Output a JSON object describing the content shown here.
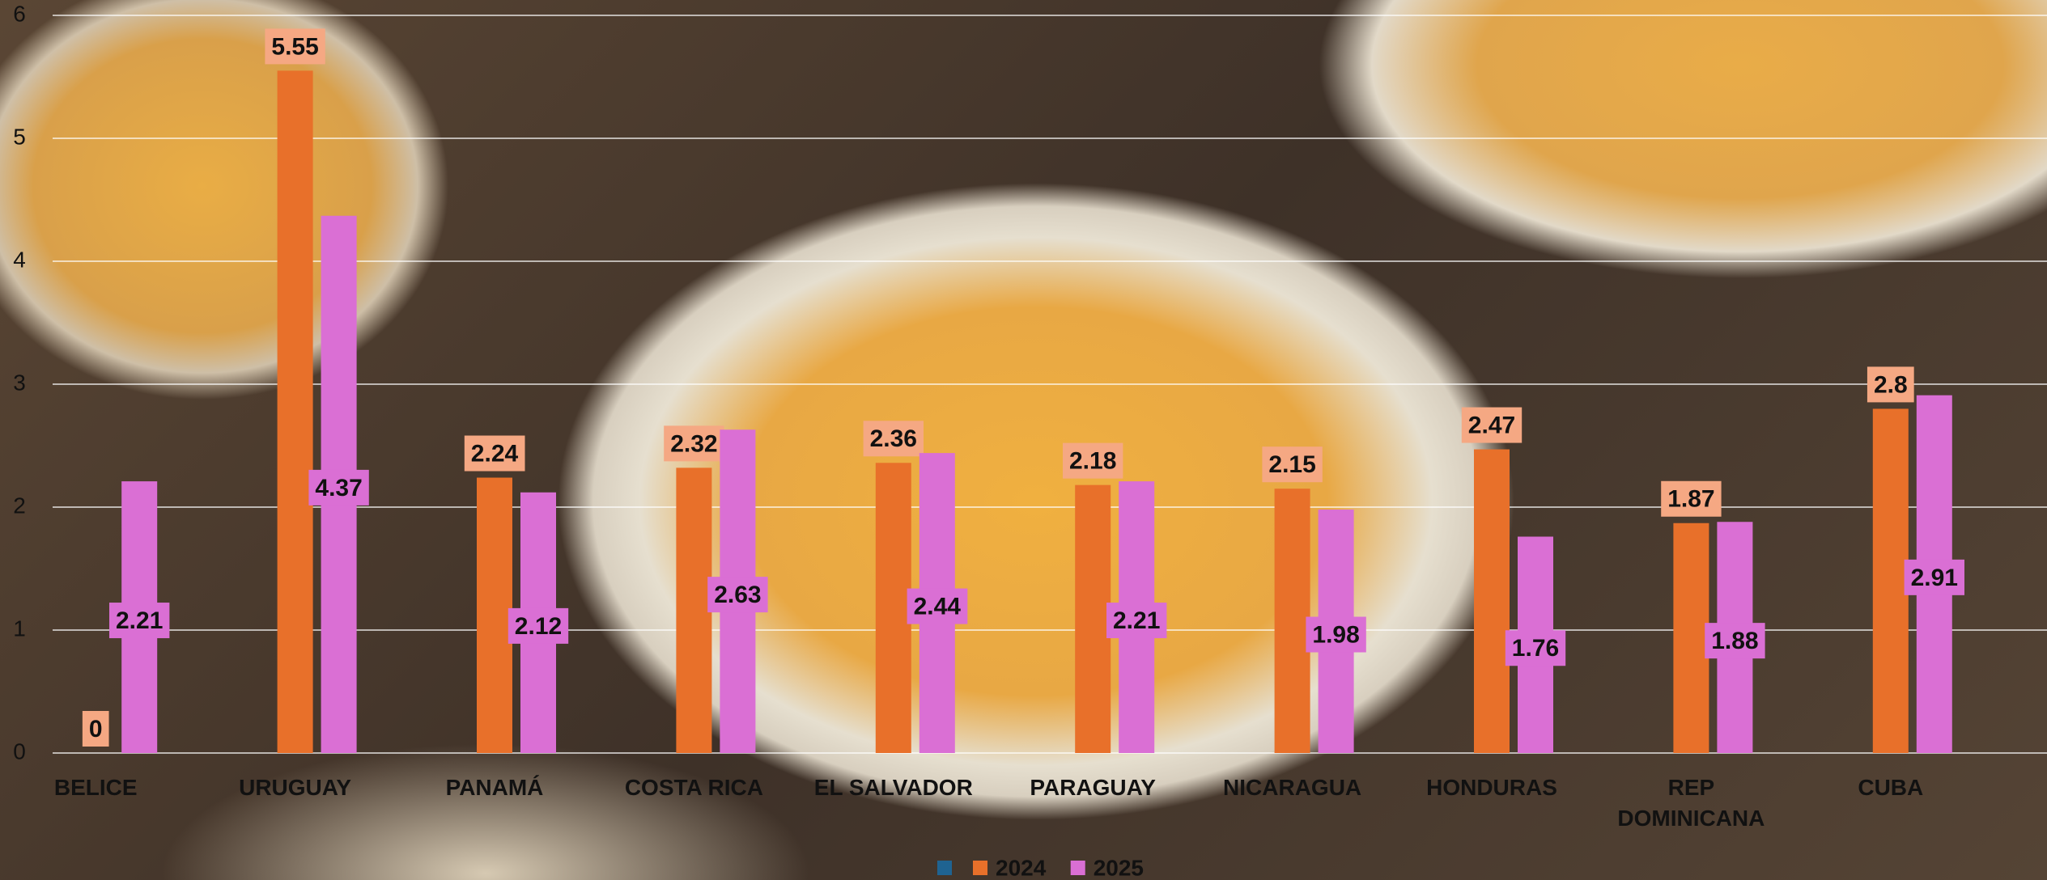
{
  "chart_data": {
    "type": "bar",
    "categories": [
      "BELICE",
      "URUGUAY",
      "PANAMÁ",
      "COSTA RICA",
      "EL SALVADOR",
      "PARAGUAY",
      "NICARAGUA",
      "HONDURAS",
      "REP DOMINICANA",
      "CUBA"
    ],
    "series": [
      {
        "name": "2024",
        "color": "#e8702a",
        "label_color": "#f5a883",
        "values": [
          0,
          5.55,
          2.24,
          2.32,
          2.36,
          2.18,
          2.15,
          2.47,
          1.87,
          2.8
        ]
      },
      {
        "name": "2025",
        "color": "#da6fd4",
        "label_color": "#da6fd4",
        "values": [
          2.21,
          4.37,
          2.12,
          2.63,
          2.44,
          2.21,
          1.98,
          1.76,
          1.88,
          2.91
        ]
      }
    ],
    "ylim": [
      0,
      6
    ],
    "yticks": [
      0,
      1,
      2,
      3,
      4,
      5,
      6
    ],
    "grid": true,
    "legend": "bottom"
  }
}
